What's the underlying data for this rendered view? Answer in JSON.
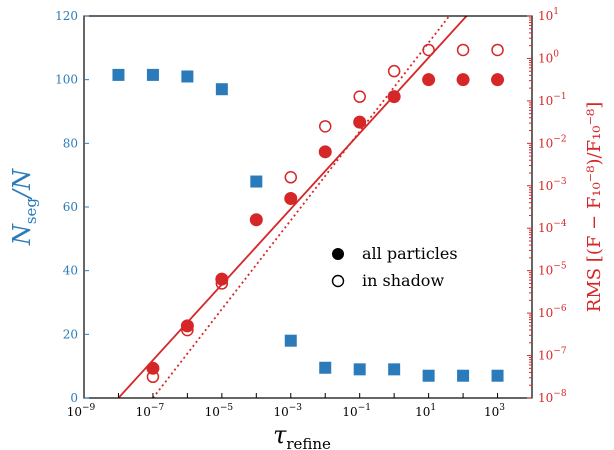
{
  "chart_data": {
    "type": "scatter",
    "x_axis": {
      "scale": "log",
      "range_exp": [
        -9,
        4
      ],
      "label": "τ",
      "label_sub": "refine",
      "tick_labels": [
        {
          "exp": -9,
          "text": "10",
          "sup": "−9"
        },
        {
          "exp": -7,
          "text": "10",
          "sup": "−7"
        },
        {
          "exp": -5,
          "text": "10",
          "sup": "−5"
        },
        {
          "exp": -3,
          "text": "10",
          "sup": "−3"
        },
        {
          "exp": -1,
          "text": "10",
          "sup": "−1"
        },
        {
          "exp": 1,
          "text": "10",
          "sup": "1"
        },
        {
          "exp": 3,
          "text": "10",
          "sup": "3"
        }
      ]
    },
    "y_left": {
      "range": [
        0,
        120
      ],
      "label_main": "N",
      "label_sub": "seg",
      "label_tail": "/N",
      "color": "#2b7bba",
      "ticks": [
        "0",
        "20",
        "40",
        "60",
        "80",
        "100",
        "120"
      ]
    },
    "y_right": {
      "scale": "log",
      "range_exp": [
        -8,
        1
      ],
      "label": "RMS [(F − F₁₀⁻⁸)/F₁₀⁻⁸]",
      "color": "#d62728",
      "tick_labels": [
        {
          "exp": -8,
          "text": "10",
          "sup": "−8"
        },
        {
          "exp": -7,
          "text": "10",
          "sup": "−7"
        },
        {
          "exp": -6,
          "text": "10",
          "sup": "−6"
        },
        {
          "exp": -5,
          "text": "10",
          "sup": "−5"
        },
        {
          "exp": -4,
          "text": "10",
          "sup": "−4"
        },
        {
          "exp": -3,
          "text": "10",
          "sup": "−3"
        },
        {
          "exp": -2,
          "text": "10",
          "sup": "−2"
        },
        {
          "exp": -1,
          "text": "10",
          "sup": "−1"
        },
        {
          "exp": 0,
          "text": "10",
          "sup": "0"
        },
        {
          "exp": 1,
          "text": "10",
          "sup": "1"
        }
      ]
    },
    "series": [
      {
        "axis": "left",
        "marker": "square",
        "color": "#2b7bba",
        "x_exp": [
          -8,
          -7,
          -6,
          -5,
          -4,
          -3,
          -2,
          -1,
          0,
          1,
          2,
          3
        ],
        "y": [
          101.5,
          101.5,
          101,
          97,
          68,
          18,
          9.5,
          9,
          9,
          7,
          7,
          7
        ]
      },
      {
        "name": "all particles",
        "axis": "right",
        "marker": "filled-circle",
        "color": "#d62728",
        "x_exp": [
          -7,
          -6,
          -5,
          -4,
          -3,
          -2,
          -1,
          0,
          1,
          2,
          3
        ],
        "y_exp": [
          -7.3,
          -6.3,
          -5.2,
          -3.8,
          -3.3,
          -2.2,
          -1.5,
          -0.9,
          -0.5,
          -0.5,
          -0.5
        ]
      },
      {
        "name": "in shadow",
        "axis": "right",
        "marker": "open-circle",
        "color": "#d62728",
        "x_exp": [
          -7,
          -6,
          -5,
          -4,
          -3,
          -2,
          -1,
          0,
          1,
          2,
          3
        ],
        "y_exp": [
          -7.5,
          -6.4,
          -5.3,
          -3.8,
          -2.8,
          -1.6,
          -0.9,
          -0.3,
          0.2,
          0.2,
          0.2
        ]
      }
    ],
    "fit_lines": [
      {
        "style": "solid",
        "color": "#d62728",
        "axis": "right",
        "x_exp": [
          -8,
          2.1
        ],
        "y_exp": [
          -8,
          1
        ]
      },
      {
        "style": "dotted",
        "color": "#d62728",
        "axis": "right",
        "x_exp": [
          -7,
          1.6
        ],
        "y_exp": [
          -8,
          1
        ]
      }
    ],
    "legend": {
      "placement": "center-right",
      "entries": [
        {
          "label": "all particles",
          "marker": "filled-circle"
        },
        {
          "label": "in shadow",
          "marker": "open-circle"
        }
      ]
    },
    "grid": false
  }
}
